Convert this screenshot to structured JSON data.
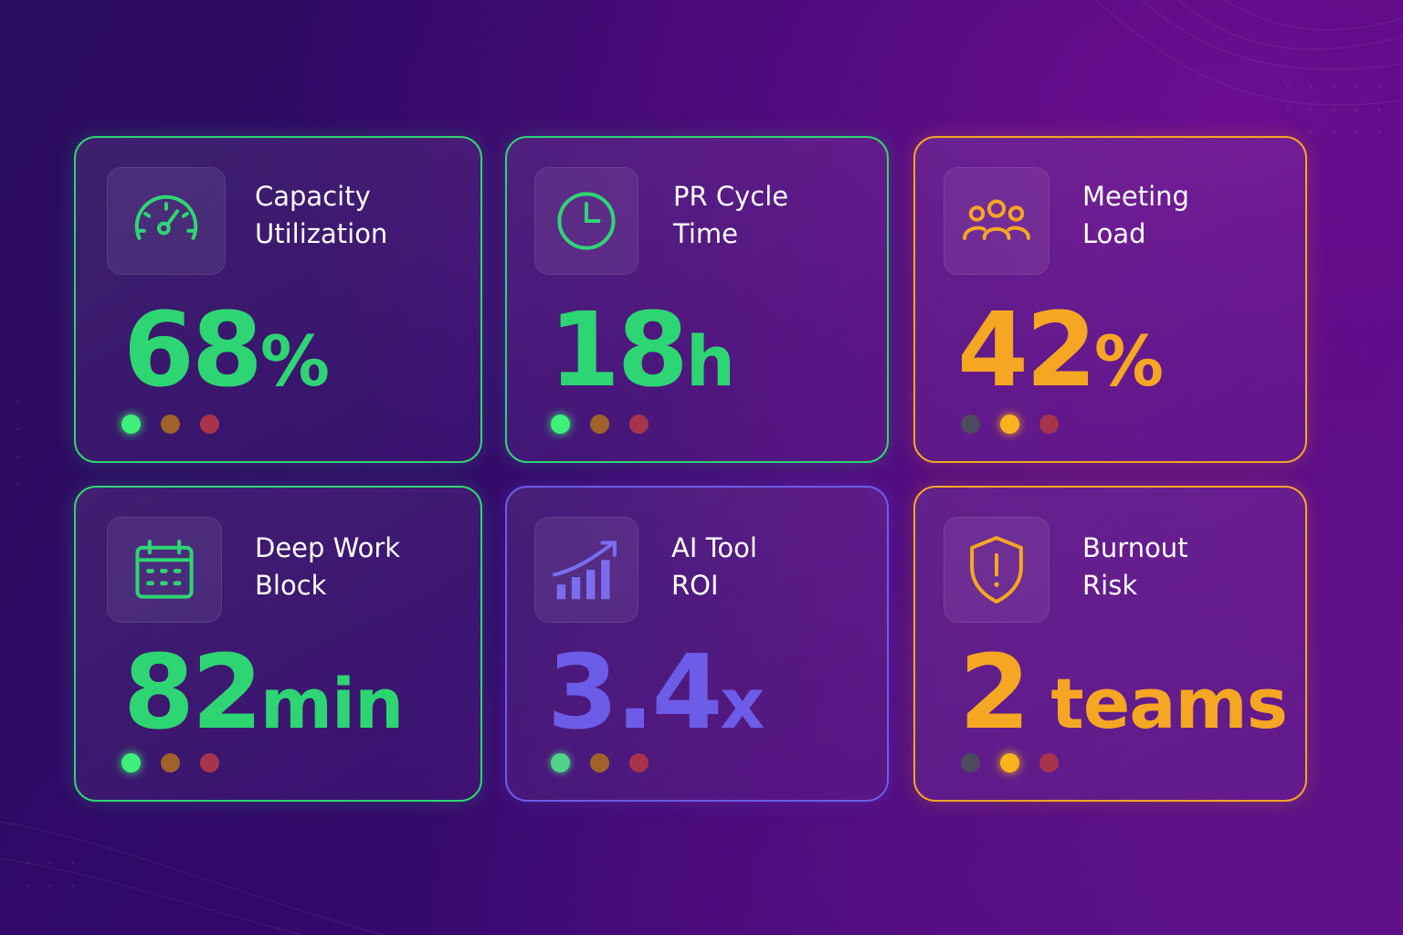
{
  "colors": {
    "green": "#2ed573",
    "amber": "#f5a623",
    "indigo": "#6c5ce7",
    "dot_green_active": "#3ef07a",
    "dot_amber_dim": "#a0622a",
    "dot_red_dim": "#a8344c",
    "dot_gray": "#4d4a5e",
    "dot_amber_active": "#f9b41d"
  },
  "cards": [
    {
      "icon": "speedometer-icon",
      "title_line1": "Capacity",
      "title_line2": "Utilization",
      "value": "68",
      "unit": "%",
      "status": "green"
    },
    {
      "icon": "clock-icon",
      "title_line1": "PR Cycle",
      "title_line2": "Time",
      "value": "18",
      "unit": "h",
      "status": "green"
    },
    {
      "icon": "users-icon",
      "title_line1": "Meeting",
      "title_line2": "Load",
      "value": "42",
      "unit": "%",
      "status": "amber"
    },
    {
      "icon": "calendar-icon",
      "title_line1": "Deep Work",
      "title_line2": "Block",
      "value": "82",
      "unit": "min",
      "status": "green"
    },
    {
      "icon": "growth-chart-icon",
      "title_line1": "AI Tool",
      "title_line2": "ROI",
      "value": "3.4",
      "unit": "x",
      "status": "green"
    },
    {
      "icon": "shield-alert-icon",
      "title_line1": "Burnout",
      "title_line2": "Risk",
      "value": "2",
      "unit": " teams",
      "status": "amber"
    }
  ]
}
